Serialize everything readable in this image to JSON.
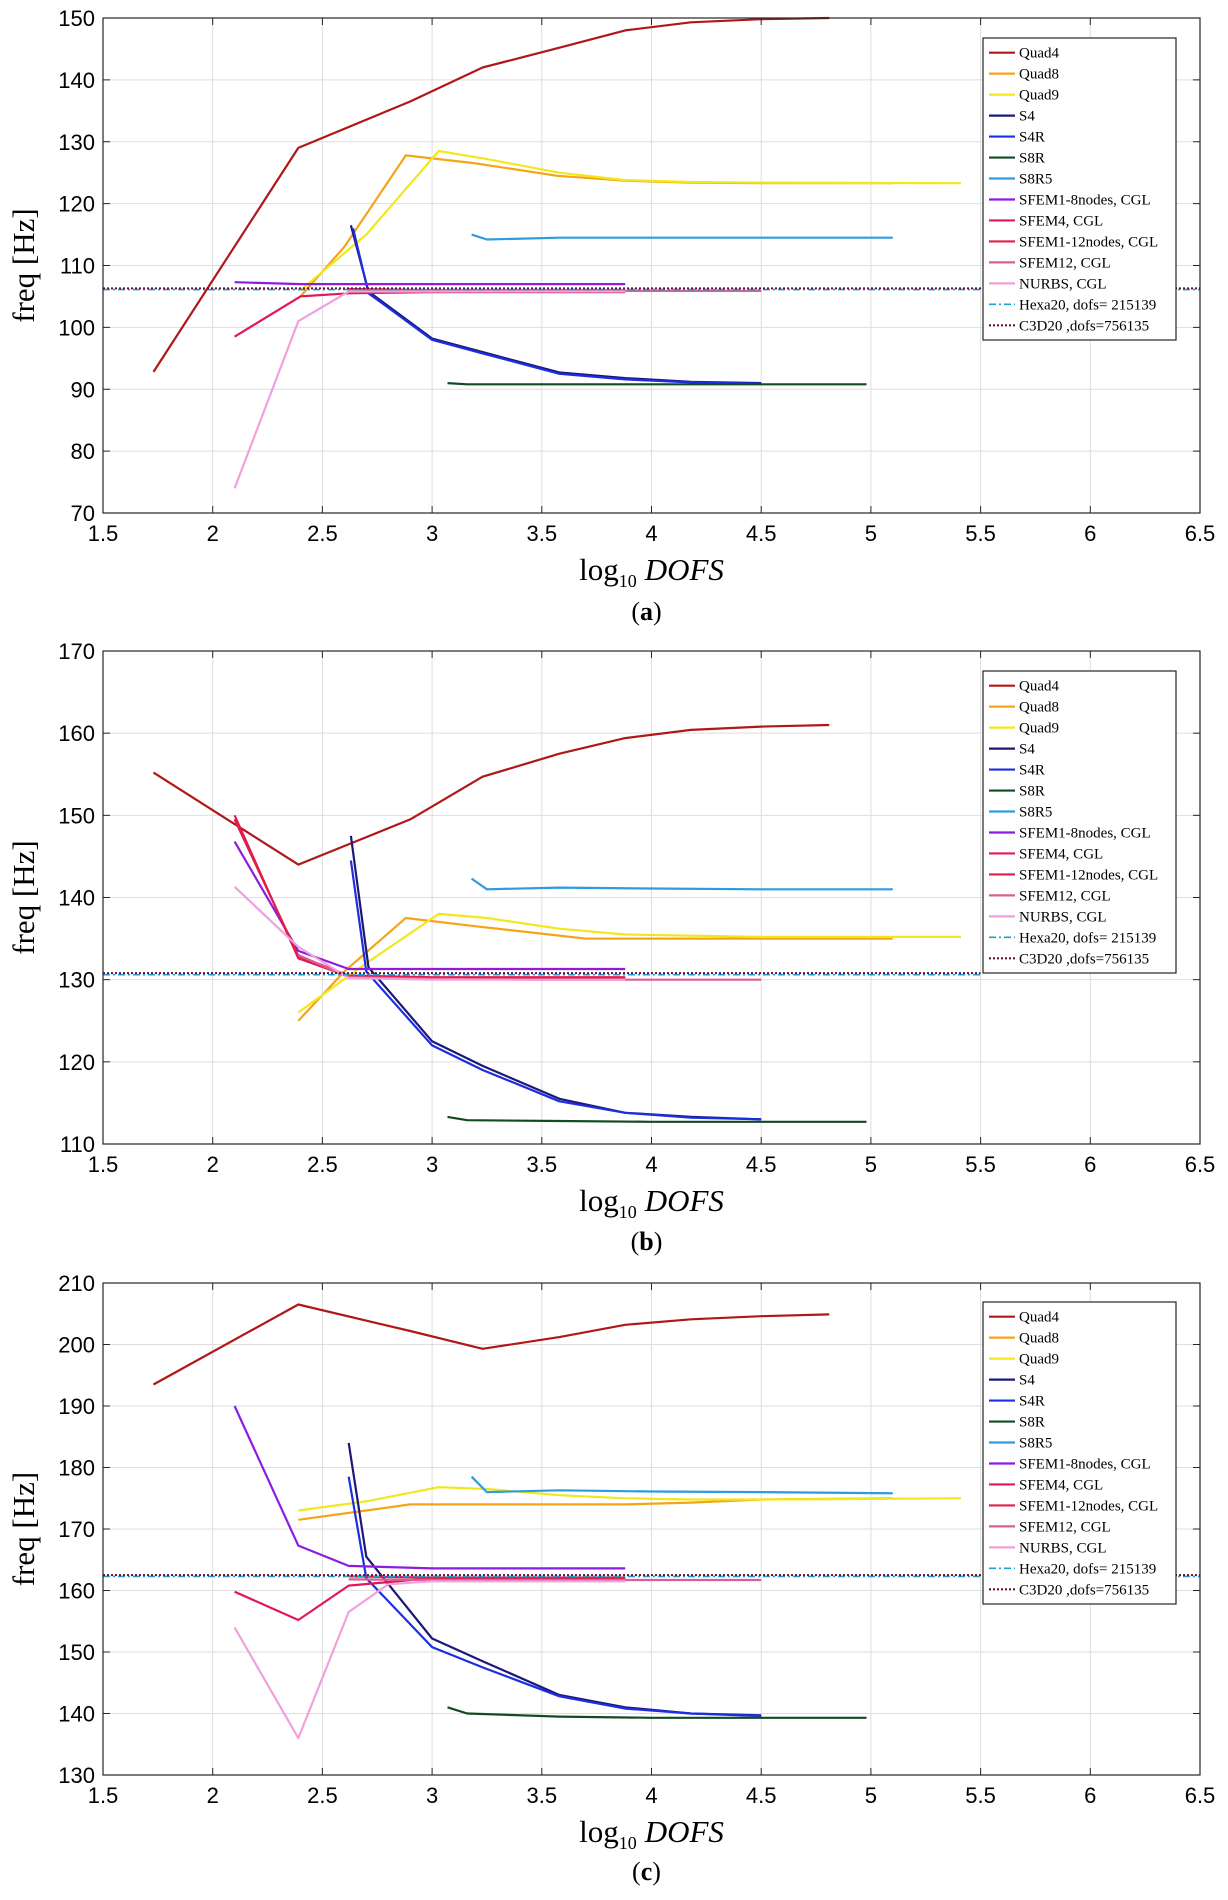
{
  "figure": {
    "panel_labels": [
      "(a)",
      "(b)",
      "(c)"
    ]
  },
  "chart_data": [
    {
      "type": "line",
      "panel": "(a)",
      "xlabel": "log10 DOFS",
      "ylabel": "freq [Hz]",
      "xlim": [
        1.5,
        6.5
      ],
      "ylim": [
        70,
        150
      ],
      "xticks": [
        1.5,
        2,
        2.5,
        3,
        3.5,
        4,
        4.5,
        5,
        5.5,
        6,
        6.5
      ],
      "yticks": [
        70,
        80,
        90,
        100,
        110,
        120,
        130,
        140,
        150
      ],
      "grid": true,
      "legend_position": "top-right",
      "series": [
        {
          "name": "Quad4",
          "color": "#b01818",
          "x": [
            1.73,
            2.39,
            2.9,
            3.23,
            3.58,
            3.88,
            4.18,
            4.5,
            4.81
          ],
          "y": [
            92.8,
            129,
            136.5,
            142,
            145.2,
            148,
            149.3,
            149.8,
            150
          ]
        },
        {
          "name": "Quad8",
          "color": "#f5a418",
          "x": [
            2.4,
            2.6,
            2.88,
            3.2,
            3.57,
            3.88,
            4.18,
            4.5,
            5.1
          ],
          "y": [
            105,
            113,
            127.8,
            126.5,
            124.5,
            123.7,
            123.4,
            123.3,
            123.3
          ]
        },
        {
          "name": "Quad9",
          "color": "#f0e81c",
          "x": [
            2.4,
            2.7,
            3.03,
            3.25,
            3.58,
            3.88,
            4.18,
            4.5,
            5.41
          ],
          "y": [
            106,
            115,
            128.5,
            127.2,
            125,
            123.8,
            123.5,
            123.4,
            123.3
          ]
        },
        {
          "name": "S4",
          "color": "#1c1878",
          "x": [
            2.63,
            2.71,
            3.0,
            3.23,
            3.58,
            3.88,
            4.18,
            4.5
          ],
          "y": [
            116.5,
            105.8,
            98.2,
            96,
            92.7,
            91.8,
            91.2,
            91
          ]
        },
        {
          "name": "S4R",
          "color": "#1c2ee0",
          "x": [
            2.64,
            2.71,
            3.0,
            3.23,
            3.58,
            3.88,
            4.18,
            4.5
          ],
          "y": [
            116,
            105.5,
            98,
            95.8,
            92.5,
            91.6,
            91.1,
            90.9
          ]
        },
        {
          "name": "S8R",
          "color": "#124a24",
          "x": [
            3.07,
            3.16,
            3.58,
            4.0,
            4.5,
            4.98
          ],
          "y": [
            91,
            90.8,
            90.8,
            90.8,
            90.8,
            90.8
          ]
        },
        {
          "name": "S8R5",
          "color": "#2e9ae0",
          "x": [
            3.18,
            3.25,
            3.58,
            4.0,
            4.5,
            5.1
          ],
          "y": [
            115,
            114.2,
            114.5,
            114.5,
            114.5,
            114.5
          ]
        },
        {
          "name": "SFEM1-8nodes, CGL",
          "color": "#8c1ce0",
          "x": [
            2.1,
            2.4,
            2.7,
            3.0,
            3.5,
            3.88
          ],
          "y": [
            107.3,
            107,
            107,
            107,
            107,
            107
          ]
        },
        {
          "name": "SFEM4, CGL",
          "color": "#e01858",
          "x": [
            2.1,
            2.4,
            2.62,
            3.0,
            3.5,
            3.88
          ],
          "y": [
            98.5,
            105,
            105.5,
            105.7,
            105.7,
            105.7
          ]
        },
        {
          "name": "SFEM1-12nodes, CGL",
          "color": "#e01e4a",
          "x": [
            2.62,
            3.0,
            3.5,
            3.88
          ],
          "y": [
            106.2,
            106,
            106,
            106
          ]
        },
        {
          "name": "SFEM12, CGL",
          "color": "#d85e96",
          "x": [
            2.62,
            3.0,
            3.5,
            4.0,
            4.5
          ],
          "y": [
            106,
            105.9,
            105.9,
            105.9,
            105.9
          ]
        },
        {
          "name": "NURBS, CGL",
          "color": "#f0a0dc",
          "x": [
            2.1,
            2.39,
            2.62,
            3.0,
            3.5,
            3.88
          ],
          "y": [
            74,
            101,
            105.8,
            105.8,
            105.8,
            105.8
          ]
        },
        {
          "name": "Hexa20, dofs= 215139",
          "color": "#1ca0d8",
          "dash": "dashdot",
          "x": [
            1.5,
            6.5
          ],
          "y": [
            106.1,
            106.1
          ]
        },
        {
          "name": "C3D20 ,dofs=756135",
          "color": "#6a1030",
          "dash": "dot",
          "x": [
            1.5,
            6.5
          ],
          "y": [
            106.3,
            106.3
          ]
        }
      ]
    },
    {
      "type": "line",
      "panel": "(b)",
      "xlabel": "log10 DOFS",
      "ylabel": "freq [Hz]",
      "xlim": [
        1.5,
        6.5
      ],
      "ylim": [
        110,
        170
      ],
      "xticks": [
        1.5,
        2,
        2.5,
        3,
        3.5,
        4,
        4.5,
        5,
        5.5,
        6,
        6.5
      ],
      "yticks": [
        110,
        120,
        130,
        140,
        150,
        160,
        170
      ],
      "grid": true,
      "legend_position": "top-right",
      "series": [
        {
          "name": "Quad4",
          "color": "#b01818",
          "x": [
            1.73,
            2.39,
            2.9,
            3.23,
            3.58,
            3.88,
            4.18,
            4.5,
            4.81
          ],
          "y": [
            155.2,
            144,
            149.5,
            154.7,
            157.5,
            159.4,
            160.4,
            160.8,
            161
          ]
        },
        {
          "name": "Quad8",
          "color": "#f5a418",
          "x": [
            2.39,
            2.6,
            2.88,
            3.2,
            3.7,
            4.18,
            4.5,
            5.1
          ],
          "y": [
            125,
            131,
            137.5,
            136.5,
            135,
            135,
            135,
            135
          ]
        },
        {
          "name": "Quad9",
          "color": "#f0e81c",
          "x": [
            2.39,
            2.7,
            3.03,
            3.25,
            3.58,
            3.88,
            4.5,
            5.41
          ],
          "y": [
            126,
            132,
            138,
            137.5,
            136.2,
            135.5,
            135.2,
            135.2
          ]
        },
        {
          "name": "S4",
          "color": "#1c1878",
          "x": [
            2.63,
            2.71,
            3.0,
            3.23,
            3.58,
            3.88,
            4.18,
            4.5
          ],
          "y": [
            147.5,
            131.5,
            122.5,
            119.5,
            115.5,
            113.8,
            113.3,
            113
          ]
        },
        {
          "name": "S4R",
          "color": "#1c2ee0",
          "x": [
            2.63,
            2.7,
            3.0,
            3.23,
            3.58,
            3.88,
            4.18,
            4.5
          ],
          "y": [
            144.5,
            131,
            122,
            119,
            115.2,
            113.8,
            113.2,
            113
          ]
        },
        {
          "name": "S8R",
          "color": "#124a24",
          "x": [
            3.07,
            3.16,
            3.58,
            4.0,
            4.5,
            4.98
          ],
          "y": [
            113.3,
            112.9,
            112.8,
            112.7,
            112.7,
            112.7
          ]
        },
        {
          "name": "S8R5",
          "color": "#2e9ae0",
          "x": [
            3.18,
            3.25,
            3.58,
            4.0,
            4.5,
            5.1
          ],
          "y": [
            142.3,
            141,
            141.2,
            141.1,
            141,
            141
          ]
        },
        {
          "name": "SFEM1-8nodes, CGL",
          "color": "#8c1ce0",
          "x": [
            2.1,
            2.39,
            2.62,
            3.0,
            3.5,
            3.88
          ],
          "y": [
            146.8,
            133.5,
            131.3,
            131.3,
            131.3,
            131.3
          ]
        },
        {
          "name": "SFEM4, CGL",
          "color": "#e01858",
          "x": [
            2.1,
            2.39,
            2.62,
            3.0,
            3.5,
            3.88
          ],
          "y": [
            150,
            132.6,
            130.4,
            130.2,
            130.2,
            130.2
          ]
        },
        {
          "name": "SFEM1-12nodes, CGL",
          "color": "#e01e4a",
          "x": [
            2.1,
            2.39,
            2.62,
            3.0,
            3.5,
            3.88
          ],
          "y": [
            149.5,
            132.9,
            130.5,
            130.3,
            130.3,
            130.3
          ]
        },
        {
          "name": "SFEM12, CGL",
          "color": "#d85e96",
          "x": [
            2.39,
            2.62,
            3.0,
            3.5,
            4.0,
            4.5
          ],
          "y": [
            133,
            130.3,
            130.1,
            130,
            130,
            130
          ]
        },
        {
          "name": "NURBS, CGL",
          "color": "#f0a0dc",
          "x": [
            2.1,
            2.39,
            2.62,
            3.0,
            3.5,
            3.88
          ],
          "y": [
            141.3,
            134,
            130.2,
            130,
            130,
            130
          ]
        },
        {
          "name": "Hexa20, dofs= 215139",
          "color": "#1ca0d8",
          "dash": "dashdot",
          "x": [
            1.5,
            5.5
          ],
          "y": [
            130.6,
            130.6
          ]
        },
        {
          "name": "C3D20 ,dofs=756135",
          "color": "#6a1030",
          "dash": "dot",
          "x": [
            1.5,
            5.5
          ],
          "y": [
            130.8,
            130.8
          ]
        }
      ]
    },
    {
      "type": "line",
      "panel": "(c)",
      "xlabel": "log10 DOFS",
      "ylabel": "freq [Hz]",
      "xlim": [
        1.5,
        6.5
      ],
      "ylim": [
        130,
        210
      ],
      "xticks": [
        1.5,
        2,
        2.5,
        3,
        3.5,
        4,
        4.5,
        5,
        5.5,
        6,
        6.5
      ],
      "yticks": [
        130,
        140,
        150,
        160,
        170,
        180,
        190,
        200,
        210
      ],
      "grid": true,
      "legend_position": "top-right",
      "series": [
        {
          "name": "Quad4",
          "color": "#b01818",
          "x": [
            1.73,
            2.39,
            2.9,
            3.23,
            3.58,
            3.88,
            4.18,
            4.5,
            4.81
          ],
          "y": [
            193.5,
            206.5,
            202.2,
            199.3,
            201.2,
            203.2,
            204.1,
            204.6,
            204.9
          ]
        },
        {
          "name": "Quad8",
          "color": "#f5a418",
          "x": [
            2.39,
            2.7,
            2.9,
            3.2,
            3.58,
            3.88,
            4.18,
            4.5,
            5.1
          ],
          "y": [
            171.5,
            173,
            174,
            174,
            174,
            174,
            174.3,
            174.8,
            175
          ]
        },
        {
          "name": "Quad9",
          "color": "#f0e81c",
          "x": [
            2.39,
            2.7,
            3.03,
            3.25,
            3.58,
            3.88,
            4.18,
            4.5,
            5.41
          ],
          "y": [
            173,
            174.5,
            176.8,
            176.5,
            175.5,
            175,
            174.8,
            174.8,
            175
          ]
        },
        {
          "name": "S4",
          "color": "#1c1878",
          "x": [
            2.62,
            2.7,
            3.0,
            3.23,
            3.58,
            3.88,
            4.18,
            4.5
          ],
          "y": [
            184,
            165.5,
            152.2,
            148.5,
            143,
            141,
            140,
            139.7
          ]
        },
        {
          "name": "S4R",
          "color": "#1c2ee0",
          "x": [
            2.62,
            2.7,
            3.0,
            3.23,
            3.58,
            3.88,
            4.18,
            4.5
          ],
          "y": [
            178.5,
            162,
            150.8,
            147.5,
            142.8,
            140.8,
            140,
            139.6
          ]
        },
        {
          "name": "S8R",
          "color": "#124a24",
          "x": [
            3.07,
            3.16,
            3.58,
            4.0,
            4.5,
            4.98
          ],
          "y": [
            141,
            140,
            139.5,
            139.3,
            139.3,
            139.3
          ]
        },
        {
          "name": "S8R5",
          "color": "#2e9ae0",
          "x": [
            3.18,
            3.25,
            3.58,
            4.0,
            4.5,
            5.1
          ],
          "y": [
            178.5,
            176,
            176.3,
            176.1,
            176,
            175.8
          ]
        },
        {
          "name": "SFEM1-8nodes, CGL",
          "color": "#8c1ce0",
          "x": [
            2.1,
            2.39,
            2.62,
            3.0,
            3.5,
            3.88
          ],
          "y": [
            190,
            167.3,
            164,
            163.6,
            163.6,
            163.6
          ]
        },
        {
          "name": "SFEM4, CGL",
          "color": "#e01858",
          "x": [
            2.1,
            2.39,
            2.62,
            3.0,
            3.5,
            3.88
          ],
          "y": [
            159.8,
            155.2,
            160.8,
            162,
            162,
            162
          ]
        },
        {
          "name": "SFEM1-12nodes, CGL",
          "color": "#e01e4a",
          "x": [
            2.62,
            3.0,
            3.5,
            3.88
          ],
          "y": [
            162.3,
            162.1,
            162.1,
            162.1
          ]
        },
        {
          "name": "SFEM12, CGL",
          "color": "#d85e96",
          "x": [
            2.62,
            3.0,
            3.5,
            4.0,
            4.5
          ],
          "y": [
            161.8,
            161.7,
            161.7,
            161.7,
            161.7
          ]
        },
        {
          "name": "NURBS, CGL",
          "color": "#f0a0dc",
          "x": [
            2.1,
            2.39,
            2.62,
            2.8,
            3.0,
            3.5,
            3.88
          ],
          "y": [
            154,
            136,
            156.5,
            161,
            161.5,
            161.5,
            161.5
          ]
        },
        {
          "name": "Hexa20, dofs= 215139",
          "color": "#1ca0d8",
          "dash": "dashdot",
          "x": [
            1.5,
            6.5
          ],
          "y": [
            162.3,
            162.3
          ]
        },
        {
          "name": "C3D20 ,dofs=756135",
          "color": "#6a1030",
          "dash": "dot",
          "x": [
            1.5,
            6.5
          ],
          "y": [
            162.5,
            162.5
          ]
        }
      ]
    }
  ]
}
